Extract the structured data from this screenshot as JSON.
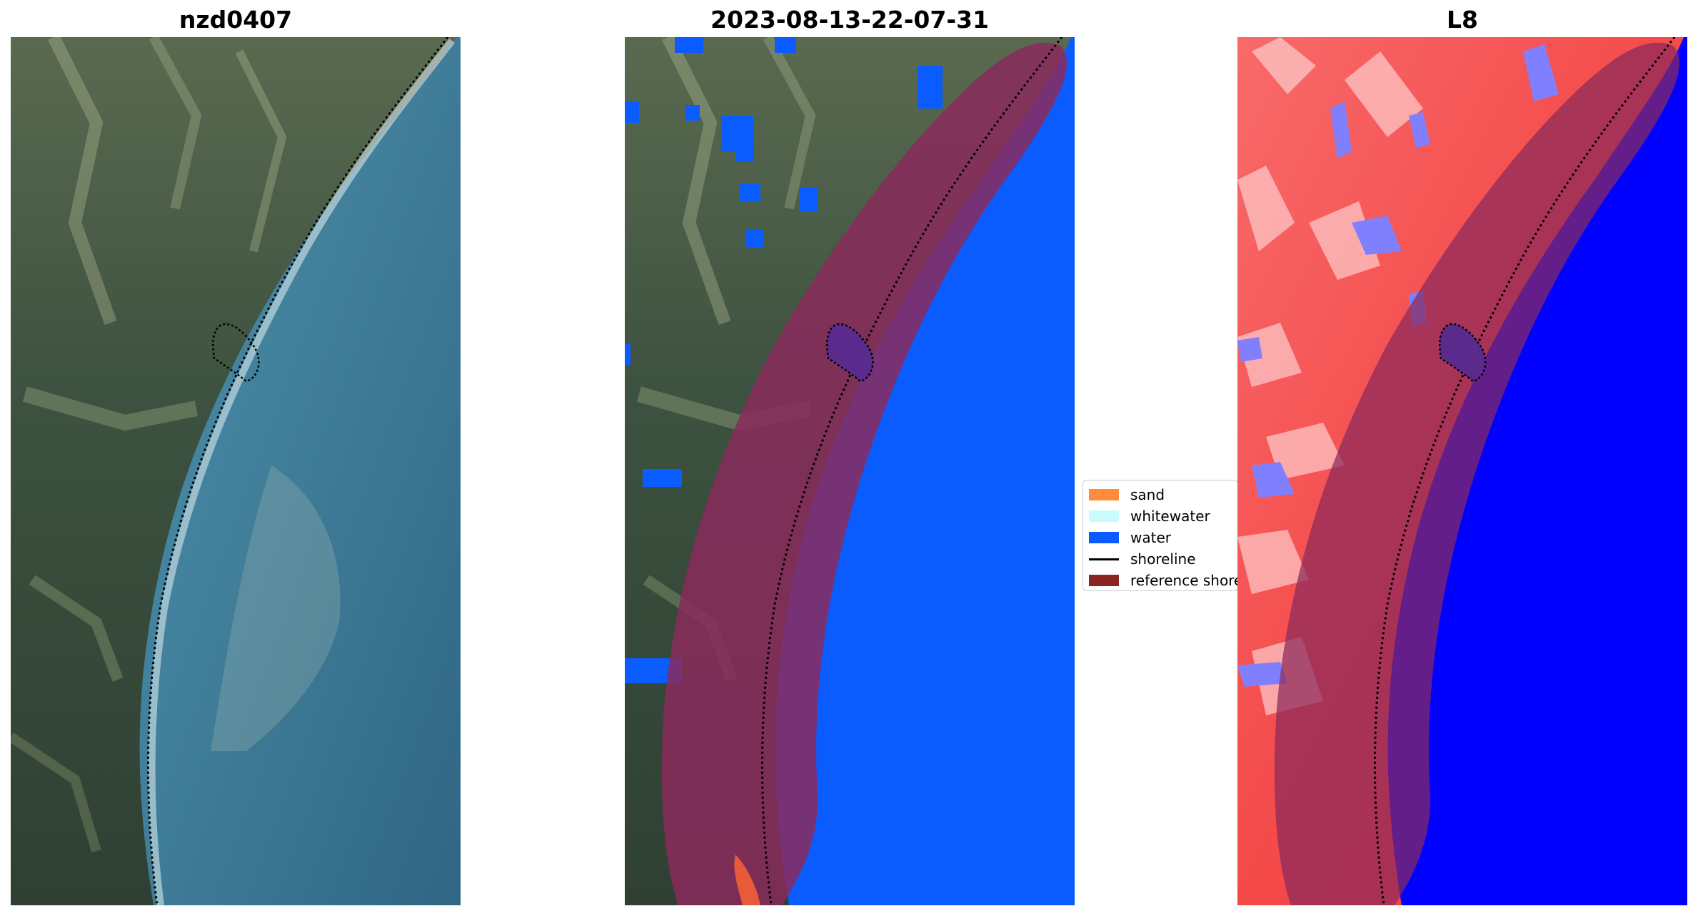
{
  "figure": {
    "panels": [
      {
        "id": "satellite",
        "title": "nzd0407"
      },
      {
        "id": "classification",
        "title": "2023-08-13-22-07-31"
      },
      {
        "id": "index",
        "title": "L8"
      }
    ]
  },
  "legend": {
    "items": [
      {
        "label": "sand",
        "color": "#ff8c3a",
        "kind": "patch"
      },
      {
        "label": "whitewater",
        "color": "#c8fbfb",
        "kind": "patch"
      },
      {
        "label": "water",
        "color": "#0a5cff",
        "kind": "patch"
      },
      {
        "label": "shoreline",
        "color": "#000000",
        "kind": "line"
      },
      {
        "label": "reference shoreline",
        "color": "#8b2323",
        "kind": "patch"
      }
    ]
  },
  "colors": {
    "land": "#3a4d3e",
    "water_rgb": "#3f7c98",
    "water_class": "#0a5cff",
    "buffer": "#8a2a5c",
    "index_high": "#f44040",
    "index_low": "#0000ff"
  }
}
